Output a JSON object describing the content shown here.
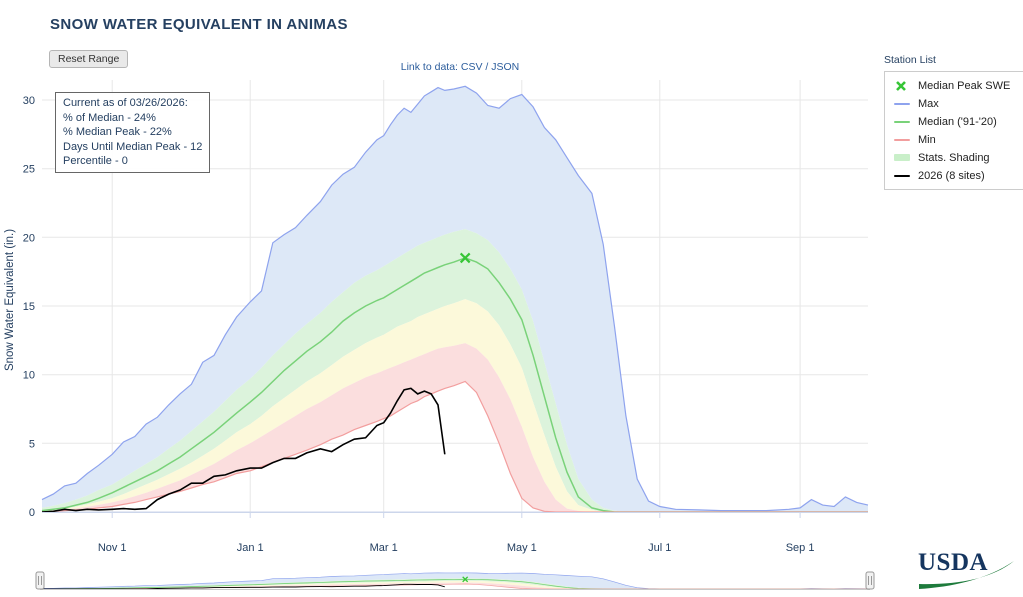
{
  "page": {
    "title": "SNOW WATER EQUIVALENT IN ANIMAS",
    "reset_button": "Reset Range",
    "data_link": {
      "prefix": "Link to data: ",
      "csv": "CSV",
      "sep": " / ",
      "json": "JSON"
    },
    "station_list_label": "Station List"
  },
  "info_box": {
    "lines": [
      "Current as of 03/26/2026:",
      "% of Median - 24%",
      "% Median Peak - 22%",
      "Days Until Median Peak - 12",
      "Percentile - 0"
    ]
  },
  "legend": {
    "items": [
      {
        "label": "Median Peak SWE",
        "type": "marker-x",
        "color": "#36c536"
      },
      {
        "label": "Max",
        "type": "line",
        "color": "#8ea3ee"
      },
      {
        "label": "Median ('91-'20)",
        "type": "line",
        "color": "#79d279"
      },
      {
        "label": "Min",
        "type": "line",
        "color": "#f29e9e"
      },
      {
        "label": "Stats. Shading",
        "type": "band",
        "color": "#c9efc9"
      },
      {
        "label": "2026 (8 sites)",
        "type": "line",
        "color": "#000000"
      }
    ]
  },
  "usda_logo_text": "USDA",
  "chart_data": {
    "type": "area",
    "title": "SNOW WATER EQUIVALENT IN ANIMAS",
    "xlabel": "",
    "ylabel": "Snow Water Equivalent (in.)",
    "ylim": [
      0,
      32
    ],
    "yticks": [
      0,
      5,
      10,
      15,
      20,
      25,
      30
    ],
    "grid": true,
    "legend_position": "right-top",
    "x_unit": "days since Oct 1",
    "xticks": [
      {
        "day": 31,
        "label": "Nov 1"
      },
      {
        "day": 92,
        "label": "Jan 1"
      },
      {
        "day": 151,
        "label": "Mar 1"
      },
      {
        "day": 212,
        "label": "May 1"
      },
      {
        "day": 273,
        "label": "Jul 1"
      },
      {
        "day": 335,
        "label": "Sep 1"
      }
    ],
    "x_days": [
      0,
      5,
      10,
      15,
      20,
      25,
      31,
      36,
      41,
      46,
      51,
      56,
      61,
      66,
      71,
      76,
      81,
      86,
      92,
      97,
      102,
      107,
      112,
      117,
      123,
      128,
      133,
      138,
      143,
      148,
      151,
      154,
      157,
      160,
      163,
      166,
      169,
      172,
      175,
      178,
      182,
      187,
      192,
      197,
      202,
      207,
      212,
      217,
      222,
      227,
      232,
      237,
      243,
      248,
      253,
      258,
      263,
      268,
      273,
      280,
      290,
      300,
      310,
      320,
      330,
      335,
      340,
      345,
      350,
      355,
      360,
      365
    ],
    "series": [
      {
        "id": "max",
        "name": "Max",
        "color": "#8ea3ee",
        "width": 1.2,
        "values": [
          0.9,
          1.3,
          1.9,
          2.1,
          2.8,
          3.4,
          4.2,
          5.1,
          5.5,
          6.4,
          6.9,
          7.8,
          8.6,
          9.3,
          10.9,
          11.4,
          12.9,
          14.2,
          15.3,
          16.1,
          19.6,
          20.2,
          20.7,
          21.6,
          22.6,
          23.8,
          24.6,
          25.1,
          26.2,
          27.1,
          27.4,
          28.2,
          28.9,
          29.4,
          29.1,
          29.7,
          30.3,
          30.6,
          30.9,
          30.7,
          30.8,
          31.0,
          30.5,
          29.6,
          29.4,
          30.1,
          30.4,
          29.5,
          28.0,
          27.1,
          25.8,
          24.5,
          23.2,
          19.5,
          13.5,
          7.0,
          2.4,
          0.8,
          0.4,
          0.2,
          0.15,
          0.1,
          0.1,
          0.1,
          0.2,
          0.3,
          0.9,
          0.5,
          0.4,
          1.1,
          0.7,
          0.5
        ]
      },
      {
        "id": "median",
        "name": "Median ('91-'20)",
        "color": "#79d279",
        "width": 1.5,
        "values": [
          0.1,
          0.2,
          0.3,
          0.5,
          0.7,
          1.0,
          1.4,
          1.8,
          2.2,
          2.6,
          3.0,
          3.5,
          4.0,
          4.6,
          5.2,
          5.8,
          6.5,
          7.2,
          8.0,
          8.7,
          9.5,
          10.3,
          11.0,
          11.7,
          12.4,
          13.1,
          13.9,
          14.5,
          15.0,
          15.4,
          15.6,
          15.9,
          16.2,
          16.5,
          16.8,
          17.1,
          17.4,
          17.6,
          17.8,
          18.0,
          18.2,
          18.5,
          18.2,
          17.7,
          16.7,
          15.5,
          14.0,
          11.4,
          8.4,
          5.4,
          2.9,
          1.1,
          0.3,
          0.1,
          0,
          0,
          0,
          0,
          0,
          0,
          0,
          0,
          0,
          0,
          0,
          0,
          0,
          0,
          0,
          0,
          0,
          0
        ]
      },
      {
        "id": "min",
        "name": "Min",
        "color": "#f29e9e",
        "width": 1.2,
        "values": [
          0,
          0.05,
          0.1,
          0.15,
          0.2,
          0.3,
          0.4,
          0.55,
          0.7,
          0.9,
          1.1,
          1.3,
          1.5,
          1.75,
          2.0,
          2.2,
          2.5,
          2.8,
          3.0,
          3.3,
          3.6,
          3.9,
          4.2,
          4.5,
          4.9,
          5.3,
          5.6,
          6.0,
          6.3,
          6.6,
          6.8,
          7.0,
          7.3,
          7.6,
          7.9,
          8.1,
          8.4,
          8.6,
          8.8,
          9.0,
          9.2,
          9.5,
          8.7,
          7.0,
          5.0,
          2.8,
          1.0,
          0.3,
          0.05,
          0,
          0,
          0,
          0,
          0,
          0,
          0,
          0,
          0,
          0,
          0,
          0,
          0,
          0,
          0,
          0,
          0,
          0,
          0,
          0,
          0,
          0,
          0
        ]
      },
      {
        "id": "swe-2026",
        "name": "2026 (8 sites)",
        "color": "#000000",
        "width": 1.6,
        "values": [
          0,
          0.05,
          0.2,
          0.1,
          0.2,
          0.15,
          0.2,
          0.25,
          0.2,
          0.25,
          0.9,
          1.3,
          1.6,
          2.1,
          2.1,
          2.6,
          2.7,
          3.0,
          3.2,
          3.2,
          3.6,
          3.9,
          3.9,
          4.3,
          4.6,
          4.4,
          4.9,
          5.3,
          5.4,
          6.3,
          6.5,
          7.2,
          8.1,
          8.9,
          9.0,
          8.6,
          8.8,
          8.6,
          7.8,
          4.2,
          null,
          null,
          null,
          null,
          null,
          null,
          null,
          null,
          null,
          null,
          null,
          null,
          null,
          null,
          null,
          null,
          null,
          null,
          null,
          null,
          null,
          null,
          null,
          null,
          null,
          null,
          null,
          null,
          null,
          null,
          null,
          null
        ]
      }
    ],
    "percentiles": {
      "p70": [
        0.3,
        0.45,
        0.65,
        0.9,
        1.2,
        1.6,
        2.0,
        2.5,
        3.0,
        3.5,
        4.0,
        4.6,
        5.2,
        5.9,
        6.6,
        7.3,
        8.1,
        8.9,
        9.7,
        10.5,
        11.4,
        12.2,
        13.0,
        13.7,
        14.5,
        15.3,
        16.0,
        16.7,
        17.2,
        17.6,
        17.9,
        18.2,
        18.5,
        18.8,
        19.1,
        19.4,
        19.6,
        19.8,
        20.0,
        20.2,
        20.4,
        20.6,
        20.3,
        19.8,
        18.9,
        17.7,
        16.2,
        13.9,
        10.9,
        7.9,
        4.9,
        2.4,
        0.9,
        0.3,
        0.1,
        0,
        0,
        0,
        0,
        0,
        0,
        0,
        0,
        0,
        0,
        0,
        0,
        0,
        0,
        0,
        0,
        0
      ],
      "p30": [
        0.06,
        0.14,
        0.25,
        0.38,
        0.55,
        0.75,
        1.0,
        1.3,
        1.65,
        2.0,
        2.35,
        2.75,
        3.15,
        3.6,
        4.1,
        4.6,
        5.2,
        5.8,
        6.4,
        7.0,
        7.7,
        8.3,
        8.9,
        9.5,
        10.1,
        10.7,
        11.3,
        11.8,
        12.3,
        12.7,
        12.9,
        13.2,
        13.5,
        13.7,
        13.9,
        14.2,
        14.4,
        14.6,
        14.8,
        15.0,
        15.2,
        15.5,
        15.2,
        14.6,
        13.6,
        12.2,
        10.5,
        8.0,
        5.6,
        3.3,
        1.5,
        0.5,
        0.15,
        0,
        0,
        0,
        0,
        0,
        0,
        0,
        0,
        0,
        0,
        0,
        0,
        0,
        0,
        0,
        0,
        0,
        0,
        0
      ],
      "p10": [
        0.02,
        0.08,
        0.16,
        0.26,
        0.38,
        0.52,
        0.7,
        0.9,
        1.15,
        1.4,
        1.7,
        2.0,
        2.3,
        2.7,
        3.1,
        3.5,
        4.0,
        4.5,
        5.0,
        5.5,
        6.0,
        6.5,
        7.0,
        7.5,
        8.0,
        8.5,
        9.0,
        9.4,
        9.8,
        10.1,
        10.3,
        10.5,
        10.7,
        10.9,
        11.1,
        11.3,
        11.5,
        11.7,
        11.9,
        12.0,
        12.1,
        12.3,
        11.9,
        11.1,
        9.8,
        8.2,
        6.2,
        4.0,
        2.2,
        0.9,
        0.25,
        0.08,
        0,
        0,
        0,
        0,
        0,
        0,
        0,
        0,
        0,
        0,
        0,
        0,
        0,
        0,
        0,
        0,
        0,
        0,
        0,
        0
      ]
    },
    "bands": [
      {
        "name": "max-to-p70",
        "upper": "max",
        "lower": "p70",
        "color": "#dde8f7"
      },
      {
        "name": "p70-to-p30",
        "upper": "p70",
        "lower": "p30",
        "color": "#dcf3dc"
      },
      {
        "name": "p30-to-p10",
        "upper": "p30",
        "lower": "p10",
        "color": "#fcf9da"
      },
      {
        "name": "p10-to-min",
        "upper": "p10",
        "lower": "min",
        "color": "#fbdede"
      }
    ],
    "median_peak_marker": {
      "label": "Median Peak SWE",
      "day": 187,
      "value": 18.5,
      "color": "#36c536"
    }
  }
}
